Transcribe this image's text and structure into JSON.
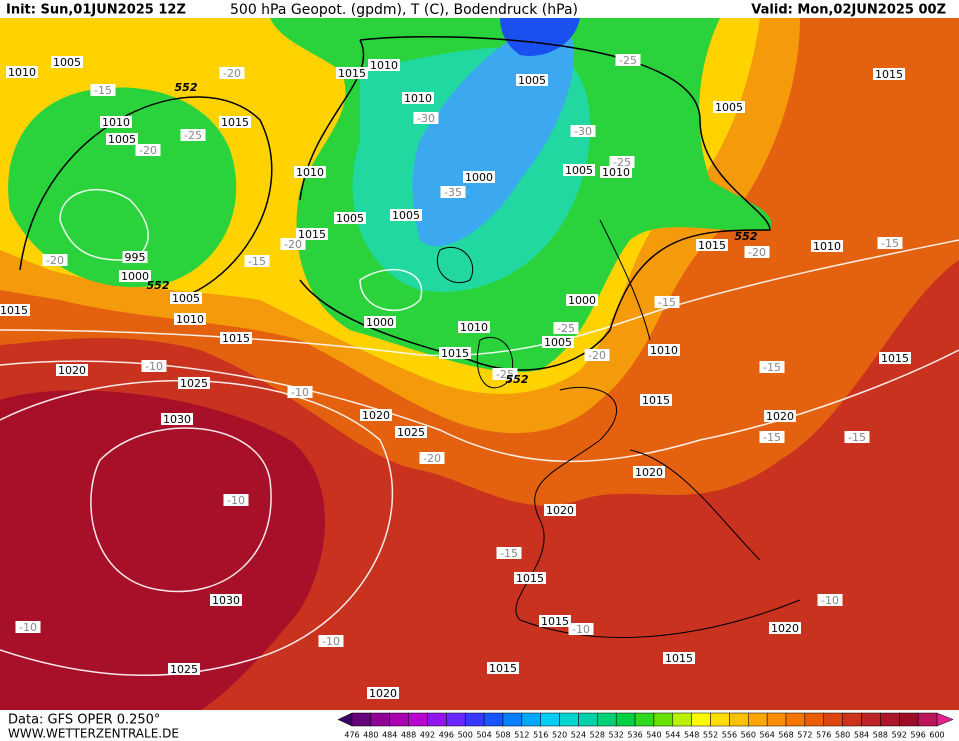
{
  "header": {
    "init": "Init: Sun,01JUN2025 12Z",
    "title": "500 hPa Geopot. (gpdm), T (C), Bodendruck (hPa)",
    "valid": "Valid: Mon,02JUN2025 00Z"
  },
  "map": {
    "pressure_labels": [
      1010,
      1005,
      1015,
      1010,
      1005,
      1015,
      1005,
      1010,
      1005,
      1010,
      1015,
      1010,
      1005,
      1010,
      1000,
      1005,
      1005,
      1015,
      1015,
      1010,
      995,
      1000,
      1005,
      1010,
      1015,
      1000,
      1000,
      1010,
      1005,
      1015,
      1015,
      1010,
      1015,
      1020,
      1025,
      1015,
      1020,
      1020,
      1030,
      1025,
      1020,
      1020,
      1015,
      1030,
      1015,
      1020,
      1025,
      1015,
      1015,
      1020
    ],
    "temperature_labels": [
      -20,
      -15,
      -25,
      -25,
      -20,
      -30,
      -30,
      -25,
      -35,
      -20,
      -15,
      -20,
      -20,
      -15,
      -15,
      -25,
      -20,
      -25,
      -10,
      -15,
      -10,
      -15,
      -15,
      -20,
      -10,
      -15,
      -10,
      -10,
      -10,
      -10
    ],
    "geopotential_labels": [
      552,
      552,
      552,
      552
    ]
  },
  "colorbar": {
    "labels": [
      476,
      480,
      484,
      488,
      492,
      496,
      500,
      504,
      508,
      512,
      516,
      520,
      524,
      528,
      532,
      536,
      540,
      544,
      548,
      552,
      556,
      560,
      564,
      568,
      572,
      576,
      580,
      584,
      588,
      592,
      596,
      600
    ]
  },
  "footer": {
    "data": "Data: GFS OPER 0.250°",
    "site": "WWW.WETTERZENTRALE.DE"
  }
}
